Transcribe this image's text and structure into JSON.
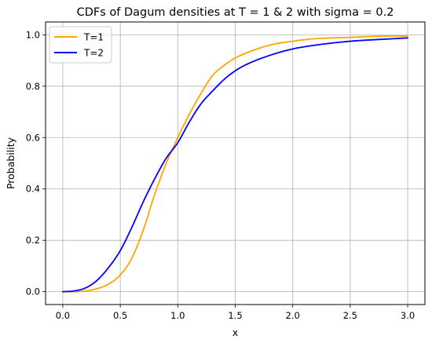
{
  "chart_data": {
    "type": "line",
    "title": "CDFs of Dagum densities at T = 1 & 2 with sigma = 0.2",
    "xlabel": "x",
    "ylabel": "Probability",
    "xlim": [
      -0.15,
      3.15
    ],
    "ylim": [
      -0.05,
      1.05
    ],
    "xticks": [
      0.0,
      0.5,
      1.0,
      1.5,
      2.0,
      2.5,
      3.0
    ],
    "xtick_labels": [
      "0.0",
      "0.5",
      "1.0",
      "1.5",
      "2.0",
      "2.5",
      "3.0"
    ],
    "yticks": [
      0.0,
      0.2,
      0.4,
      0.6,
      0.8,
      1.0
    ],
    "ytick_labels": [
      "0.0",
      "0.2",
      "0.4",
      "0.6",
      "0.8",
      "1.0"
    ],
    "grid": true,
    "legend_position": "top-left",
    "series": [
      {
        "name": "T=1",
        "color": "#ffa500",
        "x": [
          0.0,
          0.1,
          0.2,
          0.3,
          0.4,
          0.5,
          0.6,
          0.7,
          0.8,
          0.9,
          1.0,
          1.1,
          1.2,
          1.3,
          1.4,
          1.5,
          1.6,
          1.8,
          2.0,
          2.2,
          2.5,
          2.8,
          3.0
        ],
        "y": [
          0.0,
          0.0,
          0.003,
          0.012,
          0.03,
          0.065,
          0.13,
          0.24,
          0.38,
          0.5,
          0.6,
          0.69,
          0.77,
          0.84,
          0.88,
          0.91,
          0.93,
          0.96,
          0.975,
          0.985,
          0.99,
          0.995,
          0.995
        ]
      },
      {
        "name": "T=2",
        "color": "#0000ff",
        "x": [
          0.0,
          0.1,
          0.2,
          0.3,
          0.4,
          0.5,
          0.6,
          0.7,
          0.8,
          0.9,
          1.0,
          1.1,
          1.2,
          1.3,
          1.4,
          1.5,
          1.6,
          1.8,
          2.0,
          2.2,
          2.5,
          2.8,
          3.0
        ],
        "y": [
          0.0,
          0.003,
          0.015,
          0.045,
          0.095,
          0.16,
          0.25,
          0.35,
          0.44,
          0.52,
          0.58,
          0.66,
          0.73,
          0.78,
          0.825,
          0.86,
          0.885,
          0.92,
          0.945,
          0.96,
          0.975,
          0.983,
          0.988
        ]
      }
    ]
  }
}
